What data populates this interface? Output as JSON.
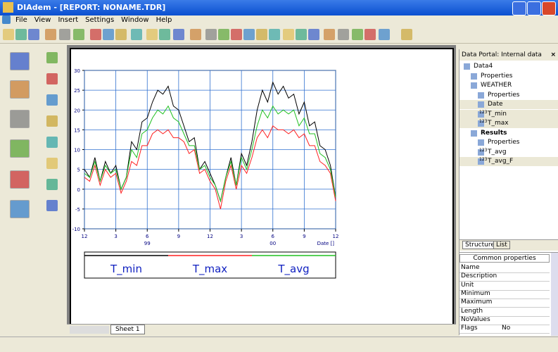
{
  "window": {
    "title": "DIAdem - [REPORT:   NONAME.TDR]",
    "menus": [
      "File",
      "View",
      "Insert",
      "Settings",
      "Window",
      "Help"
    ]
  },
  "portal": {
    "title": "Data Portal: Internal data",
    "nodes": [
      {
        "label": "Data4"
      },
      {
        "label": "Properties"
      },
      {
        "label": "WEATHER"
      },
      {
        "label": "Properties"
      },
      {
        "label": "Date"
      },
      {
        "icon": "123",
        "label": "T_min"
      },
      {
        "icon": "123",
        "label": "T_max"
      },
      {
        "label": "Results"
      },
      {
        "label": "Properties"
      },
      {
        "icon": "123",
        "label": "T_avg"
      },
      {
        "icon": "123",
        "label": "T_avg_F"
      }
    ],
    "tabs": [
      "Structure",
      "List"
    ],
    "properties": {
      "header": "Common properties",
      "rows": [
        [
          "Name",
          ""
        ],
        [
          "Description",
          ""
        ],
        [
          "Unit",
          ""
        ],
        [
          "Minimum",
          ""
        ],
        [
          "Maximum",
          ""
        ],
        [
          "Length",
          ""
        ],
        [
          "NoValues",
          ""
        ],
        [
          "Flags",
          "No"
        ]
      ]
    }
  },
  "sheet_tab": "Sheet 1",
  "chart_data": {
    "type": "line",
    "xlabel": "Date []",
    "x": [
      0,
      0.5,
      1,
      1.5,
      2,
      2.5,
      3,
      3.5,
      4,
      4.5,
      5,
      5.5,
      6,
      6.5,
      7,
      7.5,
      8,
      8.5,
      9,
      9.5,
      10,
      10.5,
      11,
      11.5,
      12,
      12.5,
      13,
      13.5,
      14,
      14.5,
      15,
      15.5,
      16,
      16.5,
      17,
      17.5,
      18,
      18.5,
      19,
      19.5,
      20,
      20.5,
      21,
      21.5,
      22,
      22.5,
      23,
      23.5,
      24
    ],
    "series": [
      {
        "name": "T_min",
        "color": "#000000",
        "values": [
          5,
          3,
          8,
          2,
          7,
          4,
          6,
          0,
          3,
          12,
          10,
          17,
          18,
          22,
          25,
          24,
          26,
          21,
          20,
          16,
          12,
          13,
          5,
          7,
          4,
          1,
          -3,
          3,
          8,
          1,
          9,
          6,
          12,
          20,
          25,
          22,
          27,
          24,
          26,
          23,
          24,
          19,
          22,
          16,
          17,
          11,
          10,
          6,
          -2
        ]
      },
      {
        "name": "T_max",
        "color": "#ff2020",
        "values": [
          3,
          2,
          6,
          1,
          5,
          3,
          4,
          -1,
          2,
          7,
          6,
          11,
          11,
          14,
          15,
          14,
          15,
          13,
          13,
          12,
          9,
          10,
          4,
          5,
          2,
          0,
          -5,
          2,
          6,
          0,
          6,
          4,
          8,
          13,
          15,
          13,
          16,
          15,
          15,
          14,
          15,
          13,
          14,
          11,
          11,
          7,
          6,
          4,
          -3
        ]
      },
      {
        "name": "T_avg",
        "color": "#20c020",
        "values": [
          4,
          3,
          7,
          2,
          6,
          4,
          5,
          0,
          3,
          10,
          8,
          14,
          15,
          18,
          20,
          19,
          21,
          18,
          17,
          14,
          11,
          11,
          5,
          6,
          3,
          1,
          -3,
          3,
          7,
          1,
          8,
          5,
          10,
          16,
          20,
          18,
          21,
          19,
          20,
          19,
          20,
          16,
          18,
          14,
          14,
          9,
          8,
          5,
          -2
        ]
      }
    ],
    "xlim": [
      0,
      24
    ],
    "xticks": [
      {
        "value": 0,
        "label": "12"
      },
      {
        "value": 3,
        "label": "3"
      },
      {
        "value": 6,
        "label": "6"
      },
      {
        "value": 9,
        "label": "9"
      },
      {
        "value": 12,
        "label": "12"
      },
      {
        "value": 15,
        "label": "3"
      },
      {
        "value": 18,
        "label": "6"
      },
      {
        "value": 21,
        "label": "9"
      },
      {
        "value": 24,
        "label": "12"
      }
    ],
    "year_labels": [
      {
        "x": 6,
        "label": "99"
      },
      {
        "x": 18,
        "label": "00"
      }
    ],
    "ylim": [
      -10,
      30
    ],
    "yticks": [
      -10,
      -5,
      0,
      5,
      10,
      15,
      20,
      25,
      30
    ],
    "grid": true,
    "grid_color": "#3070d0"
  }
}
